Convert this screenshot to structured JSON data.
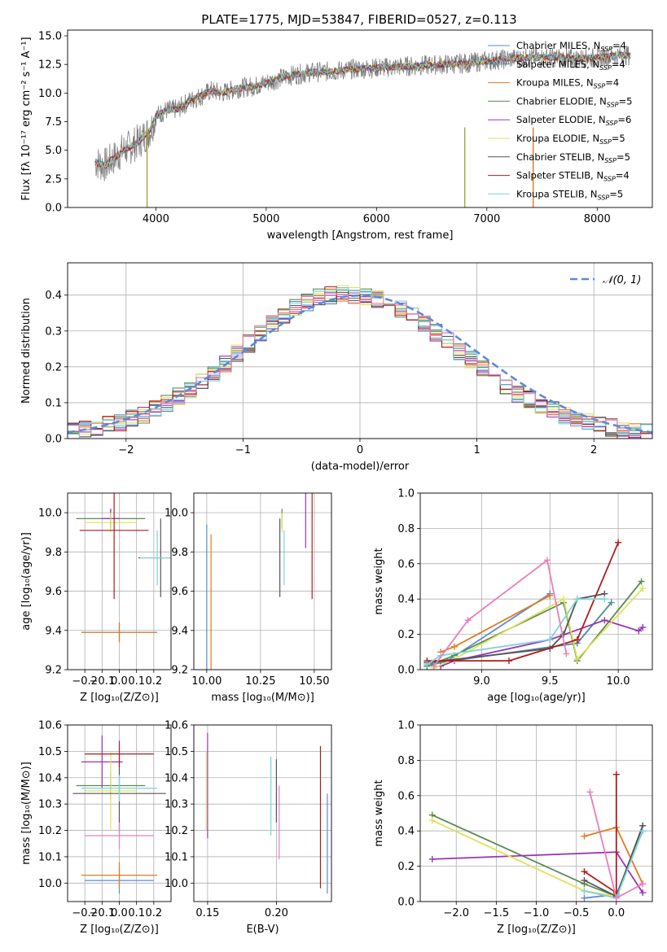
{
  "figure": {
    "title": "PLATE=1775, MJD=53847, FIBERID=0527, z=0.113"
  },
  "legend_models": [
    {
      "label": "Chabrier MILES, N<sub>SSP</sub>=4",
      "text": "Chabrier MILES, NSSP=4",
      "color": "#5b8bd8"
    },
    {
      "label": "Salpeter MILES",
      "text": "Salpeter MILES, NSSP=4",
      "color": "#4a8d97"
    },
    {
      "label": "Kroupa MILES",
      "text": "Kroupa MILES, NSSP=4",
      "color": "#e07b22"
    },
    {
      "label": "Chabrier ELODIE",
      "text": "Chabrier ELODIE, NSSP=5",
      "color": "#5a8a52"
    },
    {
      "label": "Salpeter ELODIE",
      "text": "Salpeter ELODIE, NSSP=6",
      "color": "#9b33b8"
    },
    {
      "label": "Kroupa ELODIE",
      "text": "Kroupa ELODIE, NSSP=5",
      "color": "#dde35a"
    },
    {
      "label": "Chabrier STELIB",
      "text": "Chabrier STELIB, NSSP=5",
      "color": "#555555"
    },
    {
      "label": "Salpeter STELIB",
      "text": "Salpeter STELIB, NSSP=4",
      "color": "#b01c1c"
    },
    {
      "label": "Kroupa STELIB",
      "text": "Kroupa STELIB, NSSP=5",
      "color": "#7fd3d8"
    }
  ],
  "chart_data": [
    {
      "id": "spectrum",
      "type": "line",
      "xlabel": "wavelength [Angstrom, rest frame]",
      "ylabel": "Flux [fλ 10⁻¹⁷ erg cm⁻² s⁻¹ A⁻¹]",
      "xlim": [
        3200,
        8500
      ],
      "ylim": [
        0,
        15.5
      ],
      "xticks": [
        4000,
        5000,
        6000,
        7000,
        8000
      ],
      "yticks": [
        0.0,
        2.5,
        5.0,
        7.5,
        10.0,
        12.5,
        15.0
      ],
      "grid": false,
      "legend_position": "right",
      "data_series": {
        "name": "data",
        "color": "#808080",
        "x": [
          3450,
          3500,
          3550,
          3600,
          3650,
          3700,
          3750,
          3800,
          3850,
          3900,
          3950,
          4000,
          4100,
          4200,
          4300,
          4400,
          4500,
          4600,
          4700,
          4800,
          4900,
          5000,
          5200,
          5400,
          5600,
          5800,
          6000,
          6200,
          6400,
          6600,
          6800,
          7000,
          7200,
          7400,
          7600,
          7800,
          8000,
          8200,
          8300
        ],
        "y": [
          4.0,
          3.8,
          3.7,
          4.2,
          4.5,
          5.0,
          5.2,
          5.5,
          5.8,
          6.3,
          6.8,
          8.0,
          8.5,
          8.6,
          9.3,
          9.7,
          10.2,
          10.0,
          10.3,
          10.5,
          10.6,
          10.9,
          11.5,
          11.8,
          11.9,
          12.1,
          12.2,
          12.3,
          12.4,
          12.5,
          12.6,
          12.8,
          13.0,
          13.1,
          13.1,
          13.0,
          13.1,
          13.3,
          13.3
        ]
      },
      "model_values_y_note": "models track the data continuum",
      "vlines_x": [
        3920,
        6800,
        7420
      ]
    },
    {
      "id": "residual_hist",
      "type": "line",
      "xlabel": "(data-model)/error",
      "ylabel": "Normed distribution",
      "xlim": [
        -2.5,
        2.5
      ],
      "ylim": [
        0,
        0.49
      ],
      "xticks": [
        -2,
        -1,
        0,
        1,
        2
      ],
      "yticks": [
        0.0,
        0.1,
        0.2,
        0.3,
        0.4
      ],
      "grid": true,
      "legend_position": "top-right",
      "reference_label": "𝒩(0, 1)",
      "bins_x": [
        -2.5,
        -2.4,
        -2.3,
        -2.2,
        -2.1,
        -2.0,
        -1.9,
        -1.8,
        -1.7,
        -1.6,
        -1.5,
        -1.4,
        -1.3,
        -1.2,
        -1.1,
        -1.0,
        -0.9,
        -0.8,
        -0.7,
        -0.6,
        -0.5,
        -0.4,
        -0.3,
        -0.2,
        -0.1,
        0.0,
        0.1,
        0.2,
        0.3,
        0.4,
        0.5,
        0.6,
        0.7,
        0.8,
        0.9,
        1.0,
        1.1,
        1.2,
        1.3,
        1.4,
        1.5,
        1.6,
        1.7,
        1.8,
        1.9,
        2.0,
        2.1,
        2.2,
        2.3,
        2.4,
        2.5
      ],
      "base_density": [
        0.018,
        0.024,
        0.03,
        0.038,
        0.046,
        0.056,
        0.068,
        0.082,
        0.098,
        0.116,
        0.136,
        0.158,
        0.182,
        0.208,
        0.236,
        0.264,
        0.292,
        0.318,
        0.342,
        0.364,
        0.38,
        0.392,
        0.4,
        0.404,
        0.402,
        0.398,
        0.39,
        0.378,
        0.362,
        0.342,
        0.32,
        0.296,
        0.27,
        0.244,
        0.218,
        0.192,
        0.168,
        0.146,
        0.126,
        0.108,
        0.092,
        0.078,
        0.066,
        0.056,
        0.046,
        0.038,
        0.031,
        0.025,
        0.02,
        0.016
      ]
    },
    {
      "id": "age_vs_Z",
      "type": "scatter",
      "xlabel": "Z [log₁₀(Z/Z⊙)]",
      "ylabel": "age  [log₁₀(age/yr)]",
      "xlim": [
        -0.3,
        0.3
      ],
      "ylim": [
        9.2,
        10.1
      ],
      "xticks": [
        -0.2,
        -0.1,
        0.0,
        0.1,
        0.2
      ],
      "yticks": [
        9.2,
        9.4,
        9.6,
        9.8,
        10.0
      ],
      "grid": true,
      "points": [
        {
          "x": 0.0,
          "y": 9.39,
          "xerr": 0.22,
          "yerr": 0.05,
          "ci": 0
        },
        {
          "x": 0.0,
          "y": 9.39,
          "xerr": 0.22,
          "yerr": 0.05,
          "ci": 2
        },
        {
          "x": -0.05,
          "y": 9.97,
          "xerr": 0.2,
          "yerr": 0.05,
          "ci": 3
        },
        {
          "x": -0.05,
          "y": 9.97,
          "xerr": 0.05,
          "yerr": 0.05,
          "ci": 4
        },
        {
          "x": -0.05,
          "y": 9.95,
          "xerr": 0.15,
          "yerr": 0.05,
          "ci": 5
        },
        {
          "x": 0.24,
          "y": 9.77,
          "xerr": 0.13,
          "yerr": 0.2,
          "ci": 6
        },
        {
          "x": -0.03,
          "y": 9.91,
          "xerr": 0.2,
          "yerr": 0.35,
          "ci": 7
        },
        {
          "x": 0.22,
          "y": 9.77,
          "xerr": 0.1,
          "yerr": 0.14,
          "ci": 8
        }
      ]
    },
    {
      "id": "age_vs_mass",
      "type": "scatter",
      "xlabel": "mass [log₁₀(M/M⊙)]",
      "ylabel": "",
      "xlim": [
        9.94,
        10.58
      ],
      "ylim": [
        9.2,
        10.1
      ],
      "xticks": [
        10.0,
        10.25,
        10.5
      ],
      "yticks": [
        9.2,
        9.4,
        9.6,
        9.8,
        10.0
      ],
      "grid": true,
      "points": [
        {
          "x": 10.0,
          "y": 9.39,
          "xerr": 0.0,
          "yerr": 0.55,
          "ci": 0
        },
        {
          "x": 10.02,
          "y": 9.39,
          "xerr": 0.0,
          "yerr": 0.5,
          "ci": 2
        },
        {
          "x": 10.35,
          "y": 9.97,
          "xerr": 0.0,
          "yerr": 0.05,
          "ci": 3
        },
        {
          "x": 10.46,
          "y": 9.97,
          "xerr": 0.0,
          "yerr": 0.15,
          "ci": 4
        },
        {
          "x": 10.35,
          "y": 9.95,
          "xerr": 0.0,
          "yerr": 0.05,
          "ci": 5
        },
        {
          "x": 10.34,
          "y": 9.77,
          "xerr": 0.0,
          "yerr": 0.2,
          "ci": 6
        },
        {
          "x": 10.49,
          "y": 9.91,
          "xerr": 0.0,
          "yerr": 0.35,
          "ci": 7
        },
        {
          "x": 10.36,
          "y": 9.77,
          "xerr": 0.0,
          "yerr": 0.14,
          "ci": 8
        }
      ]
    },
    {
      "id": "massweight_vs_age",
      "type": "line",
      "xlabel": "age  [log₁₀(age/yr)]",
      "ylabel": "mass weight",
      "xlim": [
        8.55,
        10.25
      ],
      "ylim": [
        0,
        1.0
      ],
      "xticks": [
        9.0,
        9.5,
        10.0
      ],
      "yticks": [
        0.0,
        0.2,
        0.4,
        0.6,
        0.8,
        1.0
      ],
      "grid": true,
      "series": [
        {
          "ci": 0,
          "x": [
            8.6,
            8.75,
            9.5
          ],
          "y": [
            0.02,
            0.05,
            0.43
          ]
        },
        {
          "ci": 1,
          "x": [
            8.6,
            9.7,
            9.95
          ],
          "y": [
            0.03,
            0.15,
            0.38
          ]
        },
        {
          "ci": 2,
          "x": [
            8.7,
            8.8,
            9.5
          ],
          "y": [
            0.1,
            0.13,
            0.42
          ]
        },
        {
          "ci": 3,
          "x": [
            8.6,
            8.8,
            9.6,
            9.7,
            10.17
          ],
          "y": [
            0.02,
            0.08,
            0.38,
            0.05,
            0.5
          ]
        },
        {
          "ci": 4,
          "x": [
            8.7,
            8.8,
            9.5,
            9.9,
            10.15,
            10.18
          ],
          "y": [
            0.02,
            0.05,
            0.17,
            0.28,
            0.22,
            0.24
          ]
        },
        {
          "ci": 5,
          "x": [
            8.65,
            8.8,
            9.6,
            9.7,
            10.18
          ],
          "y": [
            0.01,
            0.06,
            0.4,
            0.06,
            0.46
          ]
        },
        {
          "ci": 6,
          "x": [
            8.6,
            9.5,
            9.6,
            9.7,
            9.9
          ],
          "y": [
            0.04,
            0.12,
            0.2,
            0.4,
            0.43
          ]
        },
        {
          "ci": 7,
          "x": [
            8.6,
            9.2,
            9.7,
            10.0
          ],
          "y": [
            0.05,
            0.05,
            0.17,
            0.72
          ]
        },
        {
          "ci": 8,
          "x": [
            8.6,
            8.7,
            9.5,
            9.7,
            9.9
          ],
          "y": [
            0.03,
            0.08,
            0.17,
            0.4,
            0.4
          ]
        },
        {
          "ci": 9,
          "x": [
            8.65,
            8.9,
            9.48,
            9.62
          ],
          "y": [
            0.02,
            0.28,
            0.62,
            0.09
          ]
        }
      ]
    },
    {
      "id": "mass_vs_Z",
      "type": "scatter",
      "xlabel": "Z [log₁₀(Z/Z⊙)]",
      "ylabel": "mass [log₁₀(M/M⊙)]",
      "xlim": [
        -0.3,
        0.3
      ],
      "ylim": [
        9.93,
        10.6
      ],
      "xticks": [
        -0.2,
        -0.1,
        0.0,
        0.1,
        0.2
      ],
      "yticks": [
        10.0,
        10.1,
        10.2,
        10.3,
        10.4,
        10.5,
        10.6
      ],
      "grid": true,
      "points": [
        {
          "x": 0.0,
          "y": 10.01,
          "xerr": 0.2,
          "yerr": 0.05,
          "ci": 0
        },
        {
          "x": 0.0,
          "y": 10.03,
          "xerr": 0.22,
          "yerr": 0.05,
          "ci": 2
        },
        {
          "x": -0.05,
          "y": 10.37,
          "xerr": 0.2,
          "yerr": 0.05,
          "ci": 3
        },
        {
          "x": -0.1,
          "y": 10.46,
          "xerr": 0.12,
          "yerr": 0.1,
          "ci": 4
        },
        {
          "x": -0.05,
          "y": 10.35,
          "xerr": 0.15,
          "yerr": 0.15,
          "ci": 5
        },
        {
          "x": 0.0,
          "y": 10.34,
          "xerr": 0.27,
          "yerr": 0.15,
          "ci": 6
        },
        {
          "x": 0.0,
          "y": 10.49,
          "xerr": 0.2,
          "yerr": 0.05,
          "ci": 7
        },
        {
          "x": 0.0,
          "y": 10.36,
          "xerr": 0.22,
          "yerr": 0.05,
          "ci": 8
        },
        {
          "x": 0.0,
          "y": 10.18,
          "xerr": 0.2,
          "yerr": 0.05,
          "ci": 9
        }
      ]
    },
    {
      "id": "mass_vs_ebv",
      "type": "scatter",
      "xlabel": "E(B-V)",
      "ylabel": "",
      "xlim": [
        0.14,
        0.24
      ],
      "ylim": [
        9.93,
        10.6
      ],
      "xticks": [
        0.15,
        0.2
      ],
      "yticks": [
        10.0,
        10.1,
        10.2,
        10.3,
        10.4,
        10.5,
        10.6
      ],
      "grid": true,
      "points": [
        {
          "x": 0.237,
          "y": 10.15,
          "xerr": 0.0,
          "yerr": 0.19,
          "ci": 0
        },
        {
          "x": 0.232,
          "y": 10.25,
          "xerr": 0.0,
          "yerr": 0.27,
          "ci": 7
        },
        {
          "x": 0.15,
          "y": 10.37,
          "xerr": 0.0,
          "yerr": 0.2,
          "ci": 4
        },
        {
          "x": 0.149,
          "y": 10.35,
          "xerr": 0.0,
          "yerr": 0.15,
          "ci": 5
        },
        {
          "x": 0.196,
          "y": 10.33,
          "xerr": 0.0,
          "yerr": 0.15,
          "ci": 8
        },
        {
          "x": 0.2,
          "y": 10.35,
          "xerr": 0.0,
          "yerr": 0.12,
          "ci": 6
        },
        {
          "x": 0.202,
          "y": 10.23,
          "xerr": 0.0,
          "yerr": 0.14,
          "ci": 9
        }
      ]
    },
    {
      "id": "massweight_vs_Z",
      "type": "line",
      "xlabel": "Z [log₁₀(Z/Z⊙)]",
      "ylabel": "mass weight",
      "xlim": [
        -2.45,
        0.45
      ],
      "ylim": [
        0,
        1.0
      ],
      "xticks": [
        -2.0,
        -1.5,
        -1.0,
        -0.5,
        0.0
      ],
      "yticks": [
        0.0,
        0.2,
        0.4,
        0.6,
        0.8,
        1.0
      ],
      "grid": true,
      "series": [
        {
          "ci": 0,
          "x": [
            -0.4,
            0.0,
            0.33
          ],
          "y": [
            0.02,
            0.04,
            0.4
          ]
        },
        {
          "ci": 2,
          "x": [
            -0.4,
            0.0,
            0.33
          ],
          "y": [
            0.37,
            0.42,
            0.1
          ]
        },
        {
          "ci": 3,
          "x": [
            -2.3,
            -0.4,
            0.0,
            0.33
          ],
          "y": [
            0.49,
            0.1,
            0.03,
            0.43
          ]
        },
        {
          "ci": 4,
          "x": [
            -2.3,
            0.0,
            0.33
          ],
          "y": [
            0.24,
            0.28,
            0.05
          ]
        },
        {
          "ci": 5,
          "x": [
            -2.3,
            -0.4,
            0.0,
            0.33
          ],
          "y": [
            0.46,
            0.06,
            0.03,
            0.4
          ]
        },
        {
          "ci": 6,
          "x": [
            -0.4,
            0.0,
            0.33
          ],
          "y": [
            0.12,
            0.03,
            0.43
          ]
        },
        {
          "ci": 7,
          "x": [
            -0.4,
            0.0,
            0.0
          ],
          "y": [
            0.17,
            0.05,
            0.72
          ]
        },
        {
          "ci": 8,
          "x": [
            -0.4,
            0.0,
            0.33
          ],
          "y": [
            0.06,
            0.02,
            0.4
          ]
        },
        {
          "ci": 9,
          "x": [
            -0.33,
            0.0,
            0.33
          ],
          "y": [
            0.62,
            0.02,
            0.1
          ]
        }
      ]
    }
  ],
  "palette": [
    "#5b8bd8",
    "#4a8d97",
    "#e07b22",
    "#5a8a52",
    "#9b33b8",
    "#dde35a",
    "#555555",
    "#b01c1c",
    "#7fd3d8",
    "#e87fb8"
  ]
}
